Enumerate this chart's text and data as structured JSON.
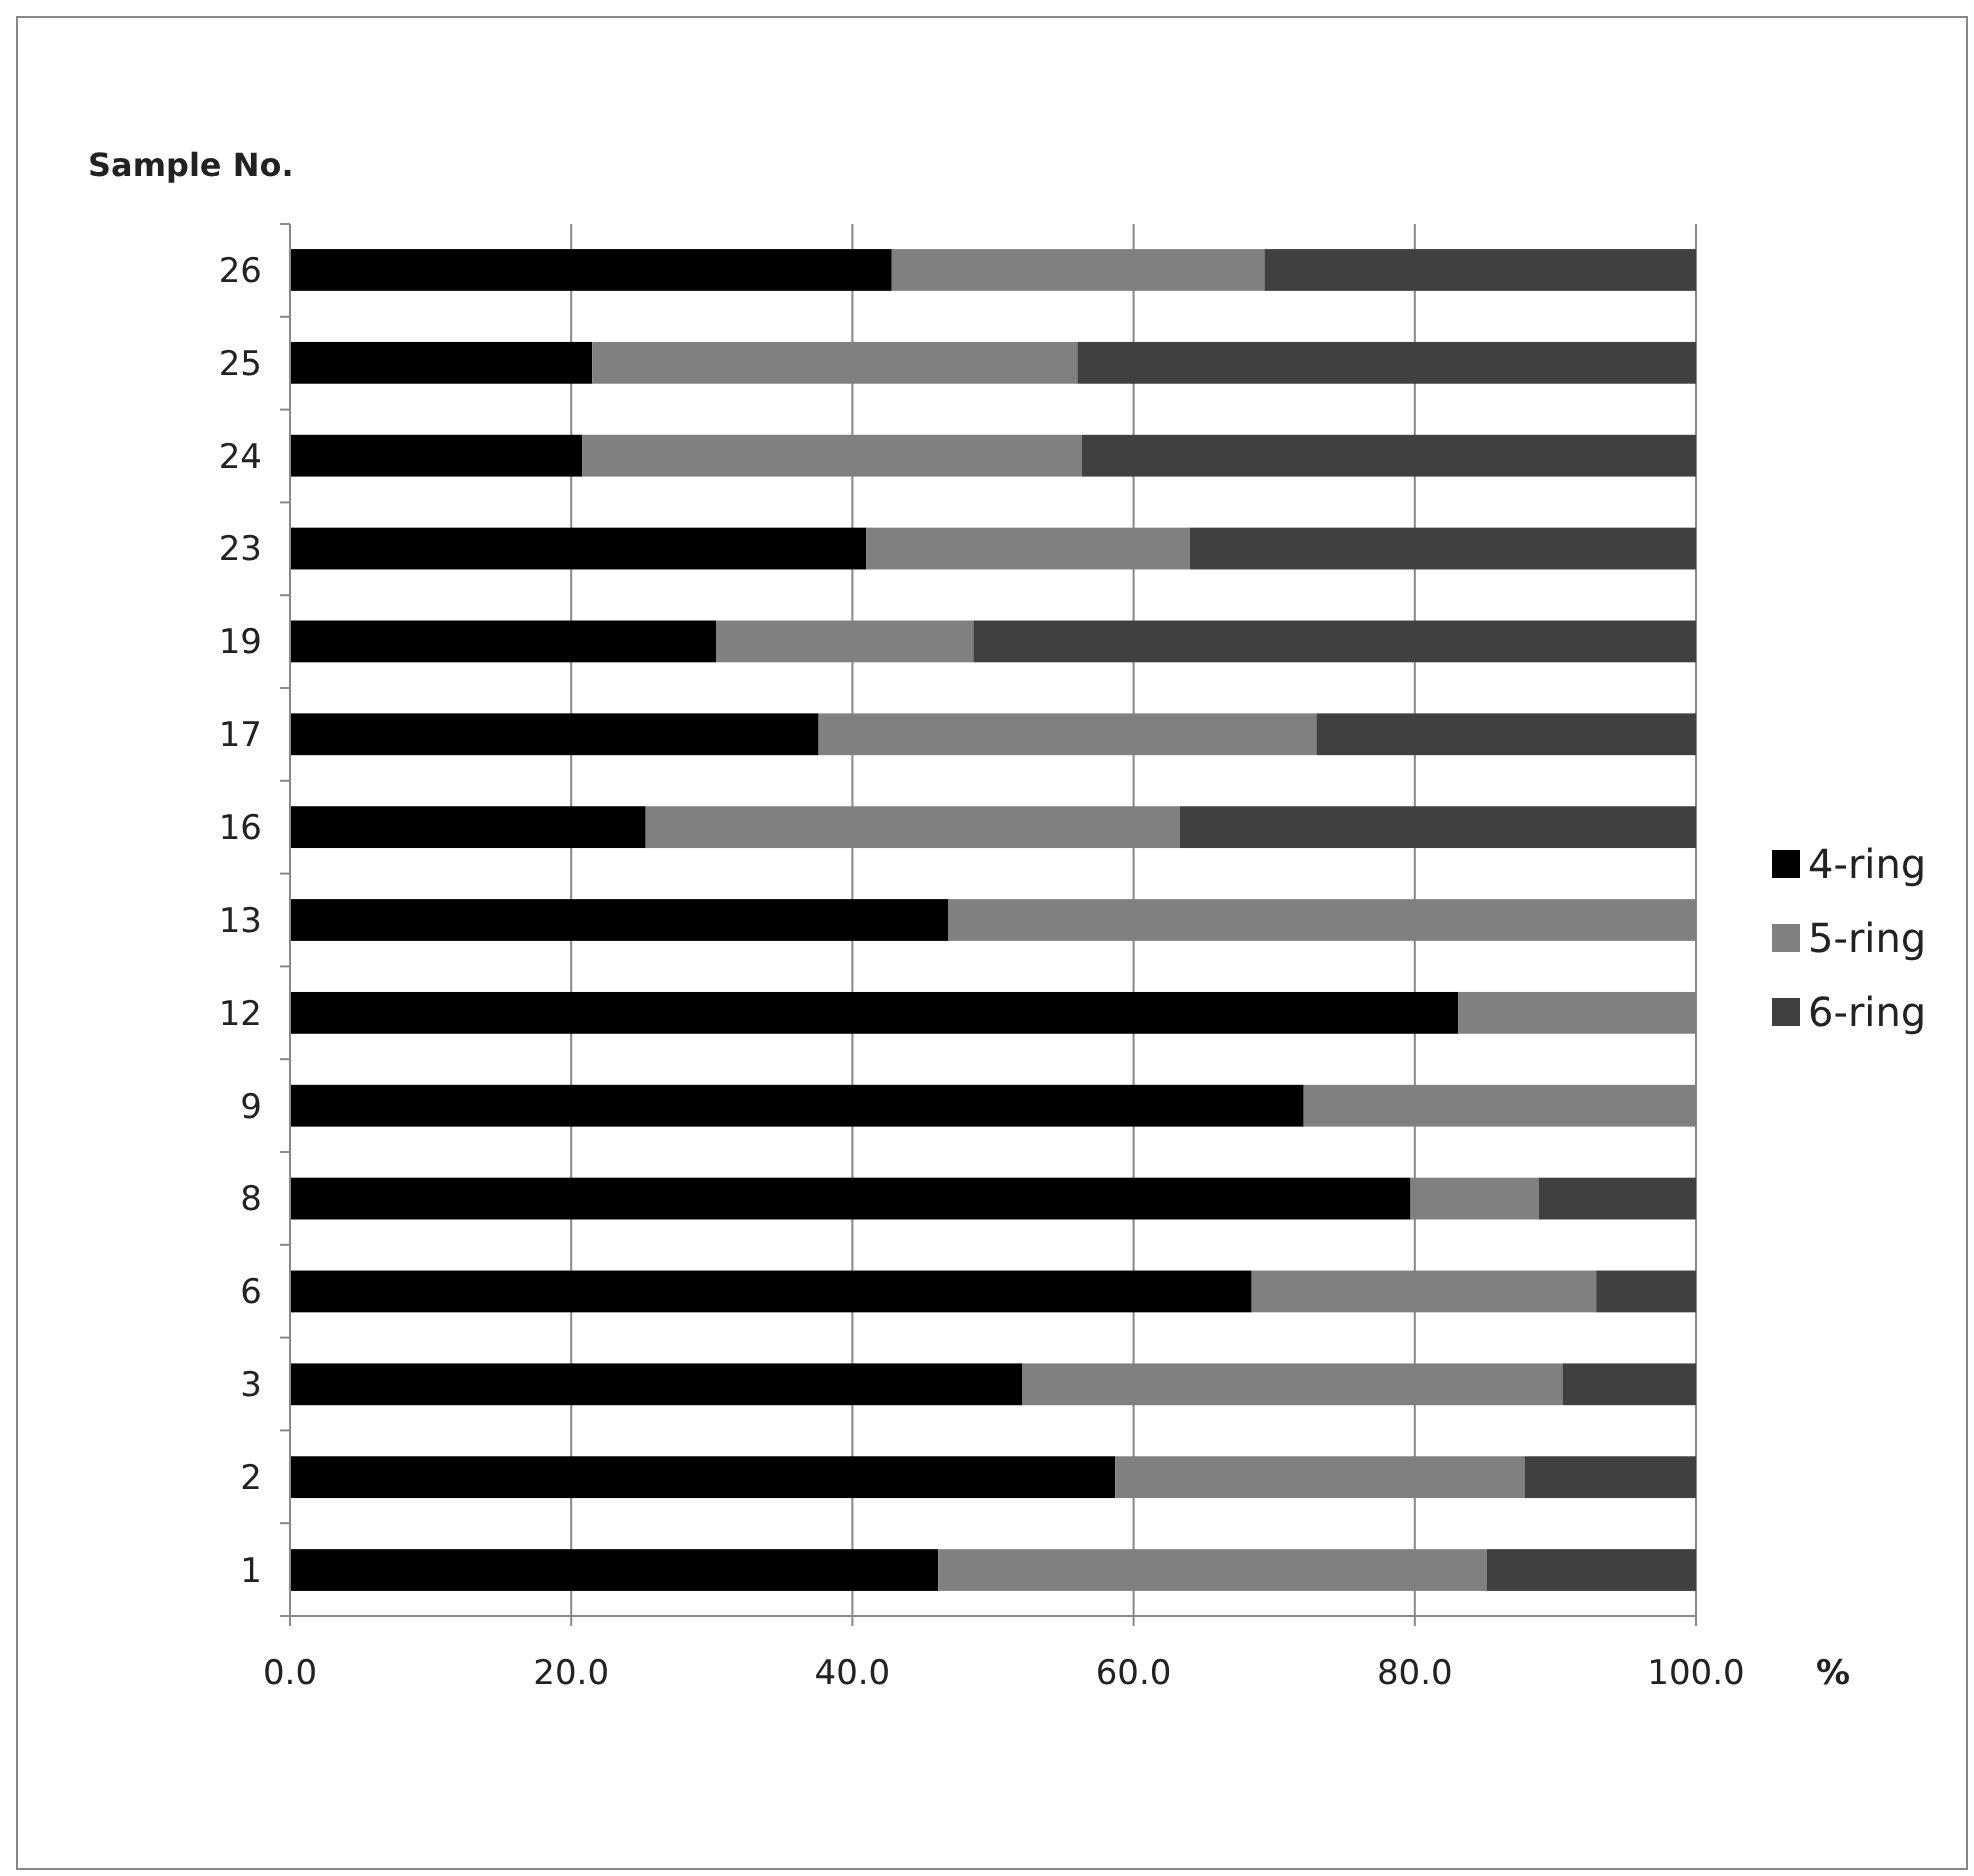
{
  "chart_data": {
    "type": "bar",
    "orientation": "horizontal",
    "stacked": true,
    "ylabel": "Sample No.",
    "xlabel": "%",
    "categories": [
      "26",
      "25",
      "24",
      "23",
      "19",
      "17",
      "16",
      "13",
      "12",
      "9",
      "8",
      "6",
      "3",
      "2",
      "1"
    ],
    "series": [
      {
        "name": "4-ring",
        "color": "#000000",
        "values": [
          42.8,
          21.5,
          20.8,
          41.0,
          30.3,
          37.6,
          25.3,
          46.8,
          83.1,
          72.1,
          79.7,
          68.4,
          52.1,
          58.7,
          46.1
        ]
      },
      {
        "name": "5-ring",
        "color": "#808080",
        "values": [
          26.5,
          34.5,
          35.5,
          23.0,
          18.3,
          35.4,
          38.0,
          53.2,
          16.9,
          27.9,
          9.1,
          24.5,
          38.4,
          29.1,
          39.0
        ]
      },
      {
        "name": "6-ring",
        "color": "#404040",
        "values": [
          30.7,
          44.0,
          43.7,
          36.0,
          51.4,
          27.0,
          36.7,
          0,
          0,
          0,
          11.2,
          7.1,
          9.5,
          12.2,
          14.9
        ]
      }
    ],
    "xlim": [
      0,
      100
    ],
    "xticks": [
      {
        "value": 0,
        "label": "0.0"
      },
      {
        "value": 20,
        "label": "20.0"
      },
      {
        "value": 40,
        "label": "40.0"
      },
      {
        "value": 60,
        "label": "60.0"
      },
      {
        "value": 80,
        "label": "80.0"
      },
      {
        "value": 100,
        "label": "100.0"
      }
    ],
    "grid": "x",
    "legend": "right"
  }
}
